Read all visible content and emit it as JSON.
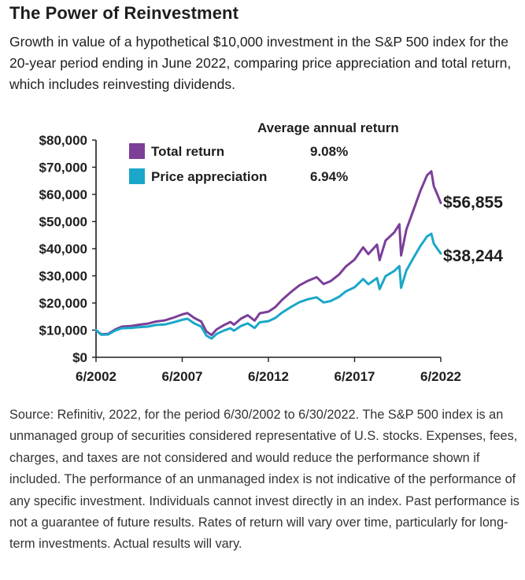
{
  "header": {
    "title": "The Power of Reinvestment",
    "subtitle": "Growth in value of a hypothetical $10,000 investment in the S&P 500 index for the 20-year period ending in June 2022, comparing price appreciation and total return, which includes reinvesting dividends."
  },
  "source_note": "Source: Refinitiv, 2022, for the period 6/30/2002 to 6/30/2022. The S&P 500 index is an unmanaged group of securities considered representative of U.S. stocks. Expenses, fees, charges, and taxes are not considered and would reduce the performance shown if included. The performance of an unmanaged index is not indicative of the performance of any specific investment. Individuals cannot invest directly in an index. Past performance is not a guarantee of future results. Rates of return will vary over time, particularly for long-term investments. Actual results will vary.",
  "colors": {
    "total_return": "#7B3F98",
    "price_appreciation": "#1BA7C9",
    "axis": "#1e1e1e"
  },
  "chart_data": {
    "type": "line",
    "title": "",
    "xlabel": "",
    "ylabel": "",
    "xlim": [
      2002.5,
      2022.5
    ],
    "ylim": [
      0,
      80000
    ],
    "x_ticks": [
      {
        "value": 2002.5,
        "label": "6/2002"
      },
      {
        "value": 2007.5,
        "label": "6/2007"
      },
      {
        "value": 2012.5,
        "label": "6/2012"
      },
      {
        "value": 2017.5,
        "label": "6/2017"
      },
      {
        "value": 2022.5,
        "label": "6/2022"
      }
    ],
    "y_ticks": [
      {
        "value": 0,
        "label": "$0"
      },
      {
        "value": 10000,
        "label": "$10,000"
      },
      {
        "value": 20000,
        "label": "$20,000"
      },
      {
        "value": 30000,
        "label": "$30,000"
      },
      {
        "value": 40000,
        "label": "$40,000"
      },
      {
        "value": 50000,
        "label": "$50,000"
      },
      {
        "value": 60000,
        "label": "$60,000"
      },
      {
        "value": 70000,
        "label": "$70,000"
      },
      {
        "value": 80000,
        "label": "$80,000"
      }
    ],
    "grid": false,
    "legend": {
      "heading": "Average annual return",
      "placement": "top-left",
      "entries": [
        {
          "name": "Total return",
          "value": "9.08%"
        },
        {
          "name": "Price appreciation",
          "value": "6.94%"
        }
      ]
    },
    "series": [
      {
        "name": "Total return",
        "color_key": "total_return",
        "end_label": "$56,855",
        "x": [
          2002.5,
          2002.8,
          2003.2,
          2003.6,
          2004.0,
          2004.5,
          2005.0,
          2005.5,
          2006.0,
          2006.5,
          2007.0,
          2007.5,
          2007.8,
          2008.2,
          2008.6,
          2008.9,
          2009.2,
          2009.5,
          2009.9,
          2010.3,
          2010.5,
          2010.9,
          2011.3,
          2011.7,
          2012.0,
          2012.5,
          2012.9,
          2013.3,
          2013.8,
          2014.3,
          2014.8,
          2015.3,
          2015.7,
          2016.1,
          2016.6,
          2017.0,
          2017.5,
          2018.0,
          2018.3,
          2018.8,
          2018.95,
          2019.3,
          2019.8,
          2020.1,
          2020.2,
          2020.5,
          2020.9,
          2021.3,
          2021.7,
          2021.95,
          2022.1,
          2022.3,
          2022.5
        ],
        "y": [
          10000,
          8500,
          8600,
          10200,
          11300,
          11500,
          12000,
          12400,
          13200,
          13600,
          14600,
          15800,
          16300,
          14500,
          13200,
          9500,
          8200,
          10300,
          11800,
          13000,
          12000,
          14200,
          15500,
          13500,
          16200,
          16800,
          18500,
          21200,
          24000,
          26500,
          28200,
          29500,
          27000,
          28000,
          30500,
          33500,
          36000,
          40500,
          38000,
          41500,
          35800,
          43000,
          46000,
          49000,
          37500,
          47000,
          54000,
          61000,
          67000,
          68500,
          63000,
          60000,
          56855
        ]
      },
      {
        "name": "Price appreciation",
        "color_key": "price_appreciation",
        "end_label": "$38,244",
        "x": [
          2002.5,
          2002.8,
          2003.2,
          2003.6,
          2004.0,
          2004.5,
          2005.0,
          2005.5,
          2006.0,
          2006.5,
          2007.0,
          2007.5,
          2007.8,
          2008.2,
          2008.6,
          2008.9,
          2009.2,
          2009.5,
          2009.9,
          2010.3,
          2010.5,
          2010.9,
          2011.3,
          2011.7,
          2012.0,
          2012.5,
          2012.9,
          2013.3,
          2013.8,
          2014.3,
          2014.8,
          2015.3,
          2015.7,
          2016.1,
          2016.6,
          2017.0,
          2017.5,
          2018.0,
          2018.3,
          2018.8,
          2018.95,
          2019.3,
          2019.8,
          2020.1,
          2020.2,
          2020.5,
          2020.9,
          2021.3,
          2021.7,
          2021.95,
          2022.1,
          2022.3,
          2022.5
        ],
        "y": [
          10000,
          8300,
          8400,
          9800,
          10700,
          10800,
          11100,
          11300,
          11900,
          12100,
          12900,
          13800,
          14200,
          12500,
          11300,
          8000,
          6900,
          8600,
          9800,
          10700,
          9800,
          11500,
          12500,
          10800,
          12900,
          13300,
          14500,
          16500,
          18500,
          20300,
          21400,
          22100,
          20200,
          20700,
          22300,
          24300,
          25800,
          28800,
          26900,
          29200,
          25100,
          29900,
          31800,
          33600,
          25600,
          31900,
          36500,
          40800,
          44500,
          45500,
          41800,
          40000,
          38244
        ]
      }
    ]
  }
}
